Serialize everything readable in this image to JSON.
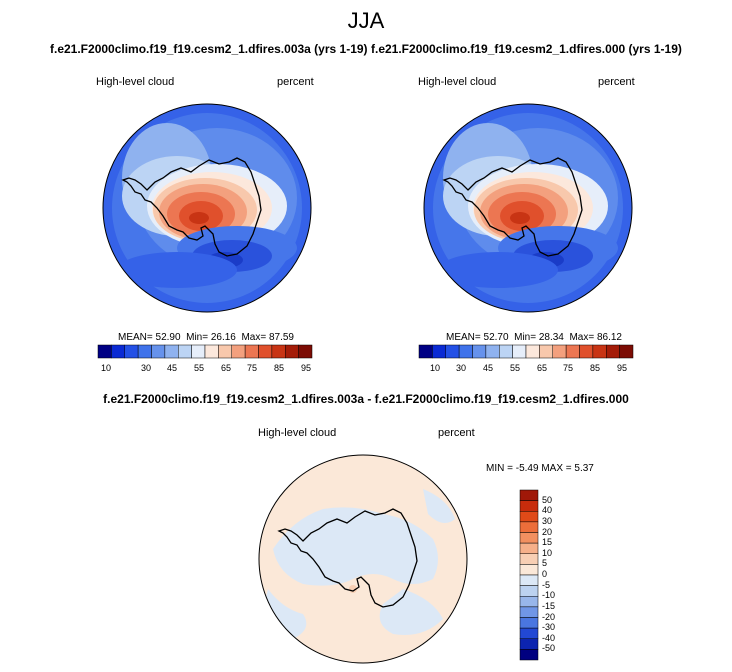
{
  "title": "JJA",
  "panels": [
    {
      "case": "f.e21.F2000climo.f19_f19.cesm2_1.dfires.003a (yrs 1-19)",
      "variable": "High-level cloud",
      "units": "percent",
      "stats": {
        "mean_label": "MEAN=",
        "mean": "52.90",
        "min_label": "Min=",
        "min": "26.16",
        "max_label": "Max=",
        "max": "87.59"
      }
    },
    {
      "case": "f.e21.F2000climo.f19_f19.cesm2_1.dfires.000 (yrs 1-19)",
      "variable": "High-level cloud",
      "units": "percent",
      "stats": {
        "mean_label": "MEAN=",
        "mean": "52.70",
        "min_label": "Min=",
        "min": "28.34",
        "max_label": "Max=",
        "max": "86.12"
      }
    }
  ],
  "colorbar": {
    "labels": [
      "10",
      "30",
      "45",
      "55",
      "65",
      "75",
      "85",
      "95"
    ],
    "colors": [
      "#000084",
      "#0a2ad4",
      "#2350e6",
      "#3f72ea",
      "#6692ec",
      "#8fb2ef",
      "#bcd4f4",
      "#e6eefa",
      "#fce8dc",
      "#f8c8ac",
      "#f3a07e",
      "#ec7652",
      "#e0502c",
      "#c83414",
      "#a41c08",
      "#7c0c04"
    ]
  },
  "difference": {
    "title": "f.e21.F2000climo.f19_f19.cesm2_1.dfires.003a - f.e21.F2000climo.f19_f19.cesm2_1.dfires.000",
    "variable": "High-level cloud",
    "units": "percent",
    "minmax": {
      "min_label": "MIN =",
      "min": "-5.49",
      "max_label": "MAX =",
      "max": "5.37"
    },
    "colorbar": {
      "labels": [
        "50",
        "40",
        "30",
        "20",
        "15",
        "10",
        "5",
        "0",
        "-5",
        "-10",
        "-15",
        "-20",
        "-30",
        "-40",
        "-50"
      ],
      "colors": [
        "#a01808",
        "#c82c0c",
        "#e04a18",
        "#ec6e3a",
        "#f29060",
        "#f6b08a",
        "#f8cfb4",
        "#fbe8d8",
        "#dce8f6",
        "#bcd2f0",
        "#98b6ea",
        "#7096e6",
        "#4a76e0",
        "#2248d4",
        "#0c24b0",
        "#000080"
      ]
    }
  }
}
